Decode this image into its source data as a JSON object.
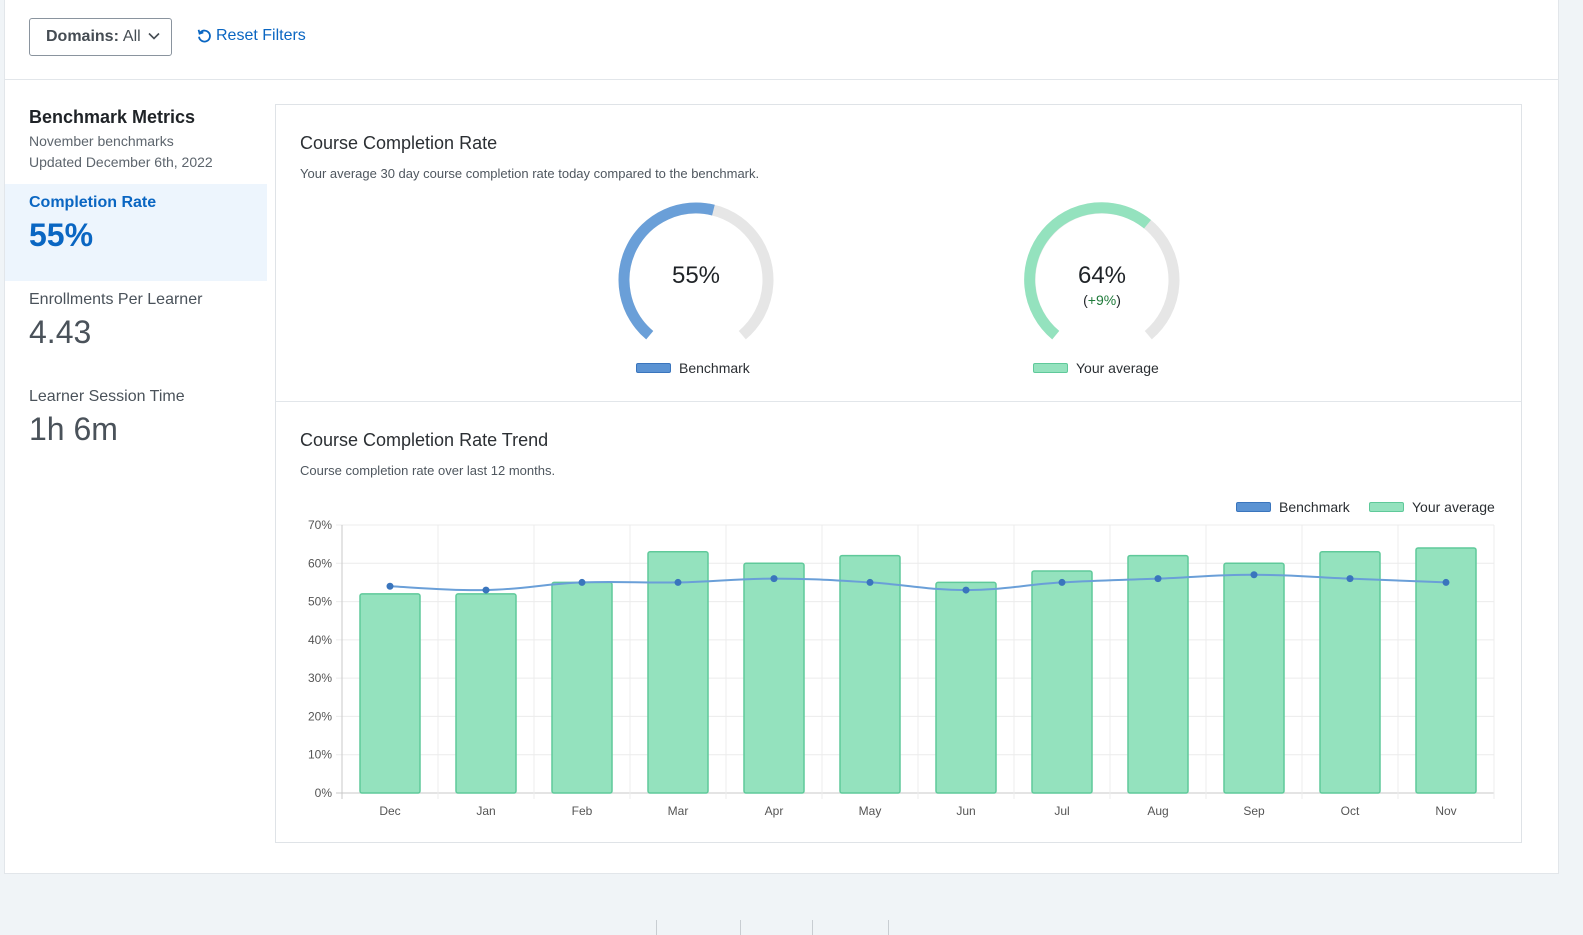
{
  "filters": {
    "domains_label": "Domains:",
    "domains_value": "All",
    "reset_label": "Reset Filters"
  },
  "sidebar": {
    "title": "Benchmark Metrics",
    "subtitle": "November benchmarks",
    "updated": "Updated December 6th, 2022",
    "metrics": [
      {
        "label": "Completion Rate",
        "value": "55%"
      },
      {
        "label": "Enrollments Per Learner",
        "value": "4.43"
      },
      {
        "label": "Learner Session Time",
        "value": "1h 6m"
      }
    ]
  },
  "completion": {
    "title": "Course Completion Rate",
    "subtitle": "Your average 30 day course completion rate today compared to the benchmark.",
    "benchmark_value": "55%",
    "benchmark_fraction": 0.55,
    "average_value": "64%",
    "average_fraction": 0.64,
    "average_delta_open": "(",
    "average_delta": "+9%",
    "average_delta_close": ")",
    "legend_benchmark": "Benchmark",
    "legend_average": "Your average"
  },
  "trend": {
    "title": "Course Completion Rate Trend",
    "subtitle": "Course completion rate over last 12 months.",
    "legend_benchmark": "Benchmark",
    "legend_average": "Your average"
  },
  "colors": {
    "accent": "#0a66c2",
    "benchmark": "#5b93d3",
    "average": "#94e2be",
    "delta_positive": "#1f7a3a"
  },
  "chart_data": {
    "type": "bar",
    "categories": [
      "Dec",
      "Jan",
      "Feb",
      "Mar",
      "Apr",
      "May",
      "Jun",
      "Jul",
      "Aug",
      "Sep",
      "Oct",
      "Nov"
    ],
    "series": [
      {
        "name": "Your average",
        "type": "bar",
        "values": [
          52,
          52,
          55,
          63,
          60,
          62,
          55,
          58,
          62,
          60,
          63,
          64
        ]
      },
      {
        "name": "Benchmark",
        "type": "line",
        "values": [
          54,
          53,
          55,
          55,
          56,
          55,
          53,
          55,
          56,
          57,
          56,
          55
        ]
      }
    ],
    "ylim": [
      0,
      70
    ],
    "yticks": [
      "0%",
      "10%",
      "20%",
      "30%",
      "40%",
      "50%",
      "60%",
      "70%"
    ],
    "legend": "top-right",
    "grid": true
  }
}
